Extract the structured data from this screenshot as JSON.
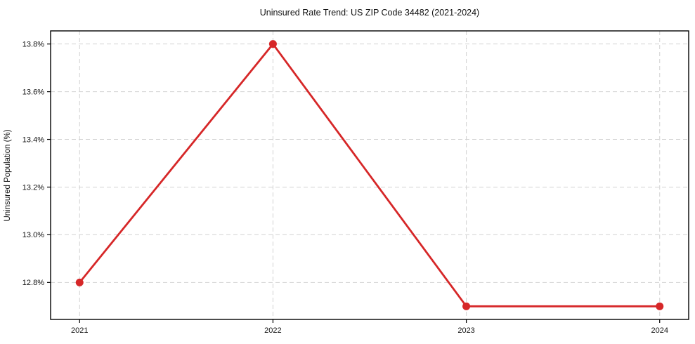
{
  "chart_data": {
    "type": "line",
    "title": "Uninsured Rate Trend: US ZIP Code 34482 (2021-2024)",
    "xlabel": "",
    "ylabel": "Uninsured Population (%)",
    "x": [
      2021,
      2022,
      2023,
      2024
    ],
    "x_tick_labels": [
      "2021",
      "2022",
      "2023",
      "2024"
    ],
    "series": [
      {
        "name": "Uninsured Population (%)",
        "values": [
          12.8,
          13.8,
          12.7,
          12.7
        ]
      }
    ],
    "y_ticks": [
      12.8,
      13.0,
      13.2,
      13.4,
      13.6,
      13.8
    ],
    "y_tick_labels": [
      "12.8%",
      "13.0%",
      "13.2%",
      "13.4%",
      "13.6%",
      "13.8%"
    ],
    "xlim": [
      2020.85,
      2024.15
    ],
    "ylim": [
      12.645,
      13.855
    ],
    "grid": true,
    "grid_style": "dashed",
    "legend": false,
    "colors": {
      "line": "#d62728",
      "marker": "#d62728",
      "grid": "#d2d2d2",
      "spine": "#000000",
      "text": "#111111",
      "background": "#ffffff"
    }
  }
}
